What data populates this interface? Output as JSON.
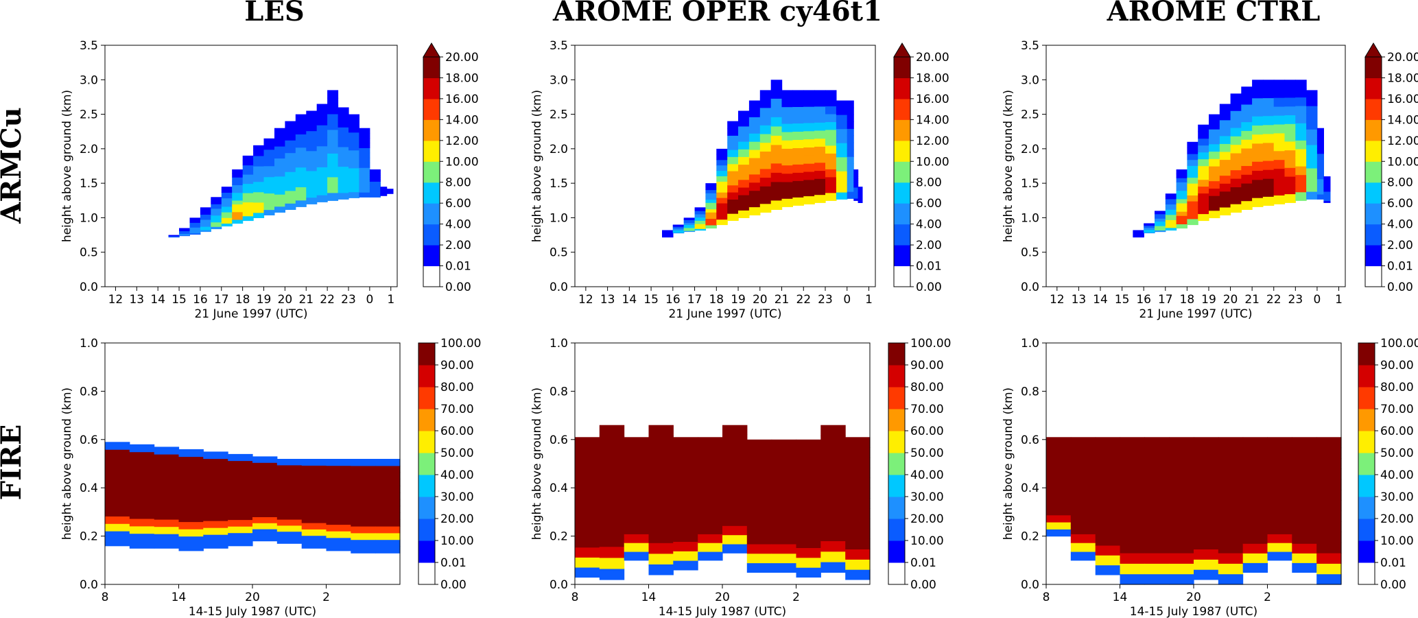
{
  "column_titles": [
    "LES",
    "AROME OPER cy46t1",
    "AROME CTRL"
  ],
  "row_titles": [
    "ARMCu",
    "FIRE"
  ],
  "colors": {
    "levels": [
      "#ffffff",
      "#0000ff",
      "#0a5cff",
      "#1e90ff",
      "#00c8ff",
      "#7cf07a",
      "#ffee00",
      "#ff9900",
      "#ff3a00",
      "#d40000",
      "#800000"
    ]
  },
  "chart_data": [
    {
      "type": "heatmap",
      "panel": "ARMCu-LES",
      "xlabel": "21 June 1997 (UTC)",
      "ylabel": "height above ground (km)",
      "xticks": [
        "12",
        "13",
        "14",
        "15",
        "16",
        "17",
        "18",
        "19",
        "20",
        "21",
        "22",
        "23",
        "0",
        "1"
      ],
      "yticks": [
        "0.0",
        "0.5",
        "1.0",
        "1.5",
        "2.0",
        "2.5",
        "3.0",
        "3.5"
      ],
      "ylim": [
        0,
        3.5
      ],
      "colorbar": [
        "0.00",
        "0.01",
        "2.00",
        "4.00",
        "6.00",
        "8.00",
        "10.00",
        "12.00",
        "14.00",
        "16.00",
        "18.00",
        "20.00"
      ],
      "colorbar_extend": "max",
      "columns": [
        {
          "x": 14.5,
          "base": 0.72,
          "top": 0.75,
          "peak": 4
        },
        {
          "x": 15.0,
          "base": 0.74,
          "top": 0.85,
          "peak": 5
        },
        {
          "x": 15.5,
          "base": 0.76,
          "top": 1.0,
          "peak": 6
        },
        {
          "x": 16.0,
          "base": 0.8,
          "top": 1.15,
          "peak": 7
        },
        {
          "x": 16.5,
          "base": 0.84,
          "top": 1.3,
          "peak": 9
        },
        {
          "x": 17.0,
          "base": 0.88,
          "top": 1.45,
          "peak": 11
        },
        {
          "x": 17.5,
          "base": 0.92,
          "top": 1.7,
          "peak": 13
        },
        {
          "x": 18.0,
          "base": 0.96,
          "top": 1.9,
          "peak": 12
        },
        {
          "x": 18.5,
          "base": 1.0,
          "top": 2.05,
          "peak": 11
        },
        {
          "x": 19.0,
          "base": 1.04,
          "top": 2.15,
          "peak": 10
        },
        {
          "x": 19.5,
          "base": 1.08,
          "top": 2.3,
          "peak": 9
        },
        {
          "x": 20.0,
          "base": 1.12,
          "top": 2.4,
          "peak": 9
        },
        {
          "x": 20.5,
          "base": 1.16,
          "top": 2.5,
          "peak": 9
        },
        {
          "x": 21.0,
          "base": 1.2,
          "top": 2.55,
          "peak": 8
        },
        {
          "x": 21.5,
          "base": 1.23,
          "top": 2.65,
          "peak": 8
        },
        {
          "x": 22.0,
          "base": 1.25,
          "top": 2.85,
          "peak": 9
        },
        {
          "x": 22.5,
          "base": 1.27,
          "top": 2.6,
          "peak": 8
        },
        {
          "x": 23.0,
          "base": 1.29,
          "top": 2.5,
          "peak": 8
        },
        {
          "x": 23.5,
          "base": 1.3,
          "top": 2.3,
          "peak": 6
        },
        {
          "x": 24.0,
          "base": 1.3,
          "top": 1.7,
          "peak": 4
        },
        {
          "x": 24.5,
          "base": 1.32,
          "top": 1.45,
          "peak": 2
        },
        {
          "x": 24.8,
          "base": 1.35,
          "top": 1.42,
          "peak": 1
        }
      ]
    },
    {
      "type": "heatmap",
      "panel": "ARMCu-AROME-OPER",
      "xlabel": "21 June 1997 (UTC)",
      "ylabel": "height above ground (km)",
      "xticks": [
        "12",
        "13",
        "14",
        "15",
        "16",
        "17",
        "18",
        "19",
        "20",
        "21",
        "22",
        "23",
        "0",
        "1"
      ],
      "yticks": [
        "0.0",
        "0.5",
        "1.0",
        "1.5",
        "2.0",
        "2.5",
        "3.0",
        "3.5"
      ],
      "ylim": [
        0,
        3.5
      ],
      "colorbar": [
        "0.00",
        "0.01",
        "2.00",
        "4.00",
        "6.00",
        "8.00",
        "10.00",
        "12.00",
        "14.00",
        "16.00",
        "18.00",
        "20.00"
      ],
      "colorbar_extend": "max",
      "columns": [
        {
          "x": 15.5,
          "base": 0.72,
          "top": 0.82,
          "peak": 1
        },
        {
          "x": 16.0,
          "base": 0.78,
          "top": 0.9,
          "peak": 8
        },
        {
          "x": 16.5,
          "base": 0.8,
          "top": 1.0,
          "peak": 10
        },
        {
          "x": 17.0,
          "base": 0.82,
          "top": 1.15,
          "peak": 12
        },
        {
          "x": 17.5,
          "base": 0.85,
          "top": 1.5,
          "peak": 16
        },
        {
          "x": 18.0,
          "base": 0.9,
          "top": 2.0,
          "peak": 19
        },
        {
          "x": 18.5,
          "base": 0.96,
          "top": 2.4,
          "peak": 20
        },
        {
          "x": 19.0,
          "base": 1.0,
          "top": 2.55,
          "peak": 20
        },
        {
          "x": 19.5,
          "base": 1.04,
          "top": 2.7,
          "peak": 20
        },
        {
          "x": 20.0,
          "base": 1.08,
          "top": 2.85,
          "peak": 20
        },
        {
          "x": 20.5,
          "base": 1.12,
          "top": 3.0,
          "peak": 20
        },
        {
          "x": 21.0,
          "base": 1.16,
          "top": 2.85,
          "peak": 20
        },
        {
          "x": 21.5,
          "base": 1.18,
          "top": 2.85,
          "peak": 20
        },
        {
          "x": 22.0,
          "base": 1.2,
          "top": 2.85,
          "peak": 20
        },
        {
          "x": 22.5,
          "base": 1.22,
          "top": 2.85,
          "peak": 20
        },
        {
          "x": 23.0,
          "base": 1.25,
          "top": 2.85,
          "peak": 18
        },
        {
          "x": 23.5,
          "base": 1.27,
          "top": 2.7,
          "peak": 12
        },
        {
          "x": 24.0,
          "base": 1.28,
          "top": 2.7,
          "peak": 6
        },
        {
          "x": 24.3,
          "base": 1.25,
          "top": 1.7,
          "peak": 3
        },
        {
          "x": 24.5,
          "base": 1.22,
          "top": 1.45,
          "peak": 2
        }
      ]
    },
    {
      "type": "heatmap",
      "panel": "ARMCu-AROME-CTRL",
      "xlabel": "21 June 1997 (UTC)",
      "ylabel": "height above ground (km)",
      "xticks": [
        "12",
        "13",
        "14",
        "15",
        "16",
        "17",
        "18",
        "19",
        "20",
        "21",
        "22",
        "23",
        "0",
        "1"
      ],
      "yticks": [
        "0.0",
        "0.5",
        "1.0",
        "1.5",
        "2.0",
        "2.5",
        "3.0",
        "3.5"
      ],
      "ylim": [
        0,
        3.5
      ],
      "colorbar": [
        "0.00",
        "0.01",
        "2.00",
        "4.00",
        "6.00",
        "8.00",
        "10.00",
        "12.00",
        "14.00",
        "16.00",
        "18.00",
        "20.00"
      ],
      "colorbar_extend": "max",
      "columns": [
        {
          "x": 15.5,
          "base": 0.72,
          "top": 0.82,
          "peak": 1
        },
        {
          "x": 16.0,
          "base": 0.78,
          "top": 0.92,
          "peak": 8
        },
        {
          "x": 16.5,
          "base": 0.8,
          "top": 1.1,
          "peak": 10
        },
        {
          "x": 17.0,
          "base": 0.82,
          "top": 1.35,
          "peak": 12
        },
        {
          "x": 17.5,
          "base": 0.85,
          "top": 1.7,
          "peak": 15
        },
        {
          "x": 18.0,
          "base": 0.9,
          "top": 2.1,
          "peak": 17
        },
        {
          "x": 18.5,
          "base": 0.96,
          "top": 2.35,
          "peak": 19
        },
        {
          "x": 19.0,
          "base": 1.0,
          "top": 2.5,
          "peak": 20
        },
        {
          "x": 19.5,
          "base": 1.04,
          "top": 2.65,
          "peak": 20
        },
        {
          "x": 20.0,
          "base": 1.08,
          "top": 2.8,
          "peak": 20
        },
        {
          "x": 20.5,
          "base": 1.12,
          "top": 2.9,
          "peak": 20
        },
        {
          "x": 21.0,
          "base": 1.16,
          "top": 3.0,
          "peak": 20
        },
        {
          "x": 21.5,
          "base": 1.18,
          "top": 3.0,
          "peak": 20
        },
        {
          "x": 22.0,
          "base": 1.2,
          "top": 3.0,
          "peak": 19
        },
        {
          "x": 22.5,
          "base": 1.22,
          "top": 3.0,
          "peak": 18
        },
        {
          "x": 23.0,
          "base": 1.25,
          "top": 3.0,
          "peak": 15
        },
        {
          "x": 23.5,
          "base": 1.27,
          "top": 2.85,
          "peak": 10
        },
        {
          "x": 24.0,
          "base": 1.27,
          "top": 2.3,
          "peak": 5
        },
        {
          "x": 24.3,
          "base": 1.22,
          "top": 1.6,
          "peak": 3
        }
      ]
    },
    {
      "type": "heatmap",
      "panel": "FIRE-LES",
      "xlabel": "14-15 July 1987 (UTC)",
      "ylabel": "height above ground (km)",
      "xticks": [
        "8",
        "14",
        "20",
        "2"
      ],
      "yticks": [
        "0.0",
        "0.2",
        "0.4",
        "0.6",
        "0.8",
        "1.0"
      ],
      "ylim": [
        0,
        1.0
      ],
      "colorbar": [
        "0.00",
        "0.01",
        "10.00",
        "20.00",
        "30.00",
        "40.00",
        "50.00",
        "60.00",
        "70.00",
        "80.00",
        "90.00",
        "100.00"
      ],
      "colorbar_extend": "neither",
      "columns": [
        {
          "x": 8,
          "base": 0.16,
          "top": 0.59,
          "peak": 100
        },
        {
          "x": 10,
          "base": 0.15,
          "top": 0.58,
          "peak": 100
        },
        {
          "x": 12,
          "base": 0.15,
          "top": 0.57,
          "peak": 100
        },
        {
          "x": 14,
          "base": 0.14,
          "top": 0.56,
          "peak": 100
        },
        {
          "x": 16,
          "base": 0.15,
          "top": 0.55,
          "peak": 100
        },
        {
          "x": 18,
          "base": 0.16,
          "top": 0.54,
          "peak": 100
        },
        {
          "x": 20,
          "base": 0.18,
          "top": 0.53,
          "peak": 100
        },
        {
          "x": 22,
          "base": 0.17,
          "top": 0.52,
          "peak": 100
        },
        {
          "x": 24,
          "base": 0.15,
          "top": 0.52,
          "peak": 100
        },
        {
          "x": 26,
          "base": 0.14,
          "top": 0.52,
          "peak": 100
        },
        {
          "x": 28,
          "base": 0.13,
          "top": 0.52,
          "peak": 100
        },
        {
          "x": 30,
          "base": 0.13,
          "top": 0.52,
          "peak": 100
        }
      ]
    },
    {
      "type": "heatmap",
      "panel": "FIRE-AROME-OPER",
      "xlabel": "14-15 July 1987 (UTC)",
      "ylabel": "height above ground (km)",
      "xticks": [
        "8",
        "14",
        "20",
        "2"
      ],
      "yticks": [
        "0.0",
        "0.2",
        "0.4",
        "0.6",
        "0.8",
        "1.0"
      ],
      "ylim": [
        0,
        1.0
      ],
      "colorbar": [
        "0.00",
        "0.01",
        "10.00",
        "20.00",
        "30.00",
        "40.00",
        "50.00",
        "60.00",
        "70.00",
        "80.00",
        "90.00",
        "100.00"
      ],
      "colorbar_extend": "neither",
      "columns": [
        {
          "x": 8,
          "base": 0.03,
          "top": 0.61,
          "peak": 100
        },
        {
          "x": 10,
          "base": 0.02,
          "top": 0.66,
          "peak": 100
        },
        {
          "x": 12,
          "base": 0.1,
          "top": 0.61,
          "peak": 100
        },
        {
          "x": 14,
          "base": 0.04,
          "top": 0.66,
          "peak": 100
        },
        {
          "x": 16,
          "base": 0.06,
          "top": 0.61,
          "peak": 100
        },
        {
          "x": 18,
          "base": 0.1,
          "top": 0.61,
          "peak": 100
        },
        {
          "x": 20,
          "base": 0.13,
          "top": 0.66,
          "peak": 90
        },
        {
          "x": 22,
          "base": 0.05,
          "top": 0.6,
          "peak": 100
        },
        {
          "x": 24,
          "base": 0.05,
          "top": 0.6,
          "peak": 100
        },
        {
          "x": 26,
          "base": 0.03,
          "top": 0.6,
          "peak": 100
        },
        {
          "x": 28,
          "base": 0.05,
          "top": 0.66,
          "peak": 100
        },
        {
          "x": 30,
          "base": 0.02,
          "top": 0.61,
          "peak": 100
        }
      ]
    },
    {
      "type": "heatmap",
      "panel": "FIRE-AROME-CTRL",
      "xlabel": "14-15 July 1987 (UTC)",
      "ylabel": "height above ground (km)",
      "xticks": [
        "8",
        "14",
        "20",
        "2"
      ],
      "yticks": [
        "0.0",
        "0.2",
        "0.4",
        "0.6",
        "0.8",
        "1.0"
      ],
      "ylim": [
        0,
        1.0
      ],
      "colorbar": [
        "0.00",
        "0.01",
        "10.00",
        "20.00",
        "30.00",
        "40.00",
        "50.00",
        "60.00",
        "70.00",
        "80.00",
        "90.00",
        "100.00"
      ],
      "colorbar_extend": "neither",
      "columns": [
        {
          "x": 8,
          "base": 0.2,
          "top": 0.61,
          "peak": 100
        },
        {
          "x": 10,
          "base": 0.1,
          "top": 0.61,
          "peak": 100
        },
        {
          "x": 12,
          "base": 0.04,
          "top": 0.61,
          "peak": 100
        },
        {
          "x": 14,
          "base": 0.0,
          "top": 0.61,
          "peak": 100
        },
        {
          "x": 16,
          "base": 0.0,
          "top": 0.61,
          "peak": 100
        },
        {
          "x": 18,
          "base": 0.0,
          "top": 0.61,
          "peak": 100
        },
        {
          "x": 20,
          "base": 0.02,
          "top": 0.61,
          "peak": 100
        },
        {
          "x": 22,
          "base": 0.0,
          "top": 0.61,
          "peak": 100
        },
        {
          "x": 24,
          "base": 0.05,
          "top": 0.61,
          "peak": 100
        },
        {
          "x": 26,
          "base": 0.1,
          "top": 0.61,
          "peak": 100
        },
        {
          "x": 28,
          "base": 0.05,
          "top": 0.61,
          "peak": 100
        },
        {
          "x": 30,
          "base": 0.0,
          "top": 0.61,
          "peak": 100
        }
      ]
    }
  ]
}
